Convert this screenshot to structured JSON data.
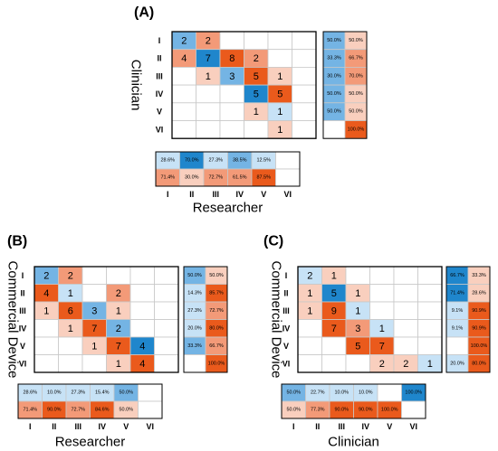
{
  "colors": {
    "blue_strong": "#1f86cc",
    "blue_mid": "#74b4e4",
    "blue_light": "#c7e2f6",
    "red_strong": "#ea5a1c",
    "red_mid": "#f39a78",
    "red_light": "#f9cfbe",
    "grid_line": "#c8c8c8",
    "border": "#000000"
  },
  "chart_data": [
    {
      "type": "heatmap",
      "panel_label": "(A)",
      "xlabel": "Researcher",
      "ylabel": "Clinician",
      "row_labels": [
        "I",
        "II",
        "III",
        "IV",
        "V",
        "VI"
      ],
      "col_labels": [
        "I",
        "II",
        "III",
        "IV",
        "V",
        "VI"
      ],
      "matrix": [
        [
          2,
          2,
          null,
          null,
          null,
          null
        ],
        [
          4,
          7,
          8,
          2,
          null,
          null
        ],
        [
          null,
          1,
          3,
          5,
          1,
          null
        ],
        [
          null,
          null,
          null,
          5,
          5,
          null
        ],
        [
          null,
          null,
          null,
          1,
          1,
          null
        ],
        [
          null,
          null,
          null,
          null,
          1,
          null
        ]
      ],
      "row_pct": [
        [
          "50.0%",
          "50.0%"
        ],
        [
          "33.3%",
          "66.7%"
        ],
        [
          "30.0%",
          "70.0%"
        ],
        [
          "50.0%",
          "50.0%"
        ],
        [
          "50.0%",
          "50.0%"
        ],
        [
          "",
          "100.0%"
        ]
      ],
      "col_pct_top": [
        "28.6%",
        "70.0%",
        "27.3%",
        "38.5%",
        "12.5%",
        ""
      ],
      "col_pct_bottom": [
        "71.4%",
        "30.0%",
        "72.7%",
        "61.5%",
        "87.5%",
        ""
      ]
    },
    {
      "type": "heatmap",
      "panel_label": "(B)",
      "xlabel": "Researcher",
      "ylabel": "Commercial Device",
      "row_labels": [
        "I",
        "II",
        "III",
        "IV",
        "V",
        "VI"
      ],
      "col_labels": [
        "I",
        "II",
        "III",
        "IV",
        "V",
        "VI"
      ],
      "matrix": [
        [
          2,
          2,
          null,
          null,
          null,
          null
        ],
        [
          4,
          1,
          null,
          2,
          null,
          null
        ],
        [
          1,
          6,
          3,
          1,
          null,
          null
        ],
        [
          null,
          1,
          7,
          2,
          null,
          null
        ],
        [
          null,
          null,
          1,
          7,
          4,
          null
        ],
        [
          null,
          null,
          null,
          1,
          4,
          null
        ]
      ],
      "row_pct": [
        [
          "50.0%",
          "50.0%"
        ],
        [
          "14.3%",
          "85.7%"
        ],
        [
          "27.3%",
          "72.7%"
        ],
        [
          "20.0%",
          "80.0%"
        ],
        [
          "33.3%",
          "66.7%"
        ],
        [
          "",
          "100.0%"
        ]
      ],
      "col_pct_top": [
        "28.6%",
        "10.0%",
        "27.3%",
        "15.4%",
        "50.0%",
        ""
      ],
      "col_pct_bottom": [
        "71.4%",
        "90.0%",
        "72.7%",
        "84.6%",
        "50.0%",
        ""
      ]
    },
    {
      "type": "heatmap",
      "panel_label": "(C)",
      "xlabel": "Clinician",
      "ylabel": "Commercial Device",
      "row_labels": [
        "I",
        "II",
        "III",
        "IV",
        "V",
        "VI"
      ],
      "col_labels": [
        "I",
        "II",
        "III",
        "IV",
        "V",
        "VI"
      ],
      "matrix": [
        [
          2,
          1,
          null,
          null,
          null,
          null
        ],
        [
          1,
          5,
          1,
          null,
          null,
          null
        ],
        [
          1,
          9,
          1,
          null,
          null,
          null
        ],
        [
          null,
          7,
          3,
          1,
          null,
          null
        ],
        [
          null,
          null,
          5,
          7,
          null,
          null
        ],
        [
          null,
          null,
          null,
          2,
          2,
          1
        ]
      ],
      "row_pct": [
        [
          "66.7%",
          "33.3%"
        ],
        [
          "71.4%",
          "28.6%"
        ],
        [
          "9.1%",
          "90.9%"
        ],
        [
          "9.1%",
          "90.9%"
        ],
        [
          "",
          "100.0%"
        ],
        [
          "20.0%",
          "80.0%"
        ]
      ],
      "col_pct_top": [
        "50.0%",
        "22.7%",
        "10.0%",
        "10.0%",
        "",
        "100.0%"
      ],
      "col_pct_bottom": [
        "50.0%",
        "77.3%",
        "90.0%",
        "90.0%",
        "100.0%",
        ""
      ]
    }
  ]
}
